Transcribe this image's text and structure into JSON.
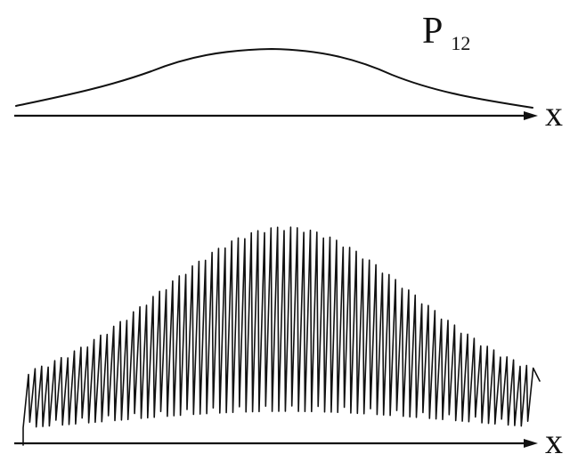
{
  "top_panel": {
    "label_main": "P",
    "label_sub": "12",
    "axis_label": "x"
  },
  "bottom_panel": {
    "axis_label": "x"
  },
  "colors": {
    "ink": "#111111",
    "background": "#ffffff"
  }
}
